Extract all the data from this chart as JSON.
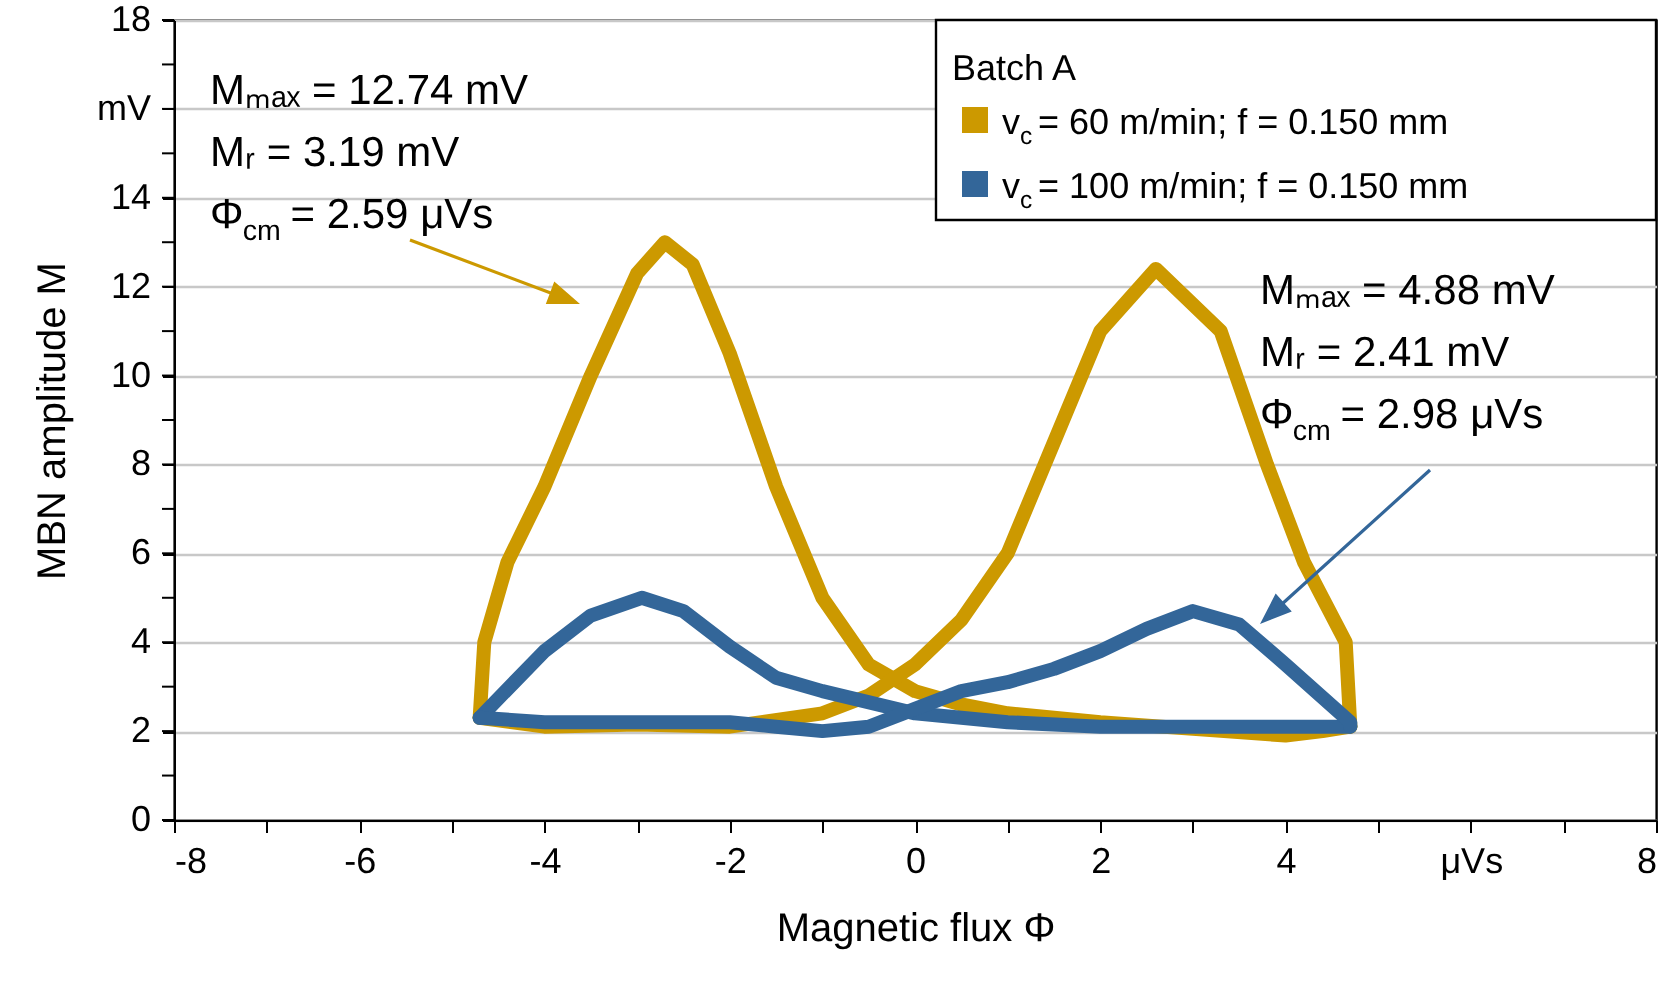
{
  "chart_data": {
    "type": "line",
    "xlabel": "Magnetic flux Φ",
    "ylabel": "MBN amplitude M",
    "legend_title": "Batch A",
    "series": [
      {
        "name": "v$_{c}$ = 60 m/min; f = 0.150 mm",
        "color": "#cc9900",
        "x": [
          -4.7,
          -4.65,
          -4.4,
          -4.0,
          -3.5,
          -3.0,
          -2.7,
          -2.4,
          -2.0,
          -1.5,
          -1.0,
          -0.5,
          0.0,
          0.5,
          1.0,
          2.0,
          3.0,
          4.0,
          4.4,
          4.7
        ],
        "values": [
          2.3,
          4.0,
          5.8,
          7.5,
          10.0,
          12.3,
          13.0,
          12.5,
          10.5,
          7.5,
          5.0,
          3.5,
          2.9,
          2.6,
          2.4,
          2.2,
          2.05,
          1.9,
          2.0,
          2.1
        ]
      },
      {
        "color": "#cc9900",
        "x": [
          4.7,
          4.65,
          4.2,
          3.8,
          3.3,
          2.6,
          2.0,
          1.5,
          1.0,
          0.5,
          0.0,
          -0.5,
          -1.0,
          -2.0,
          -3.0,
          -4.0,
          -4.7
        ],
        "values": [
          2.1,
          4.0,
          5.8,
          8.0,
          11.0,
          12.4,
          11.0,
          8.5,
          6.0,
          4.5,
          3.5,
          2.8,
          2.4,
          2.1,
          2.15,
          2.1,
          2.3
        ]
      },
      {
        "name": "v$_{c}$ = 100 m/min; f = 0.150 mm",
        "color": "#336699",
        "x": [
          -4.7,
          -4.0,
          -3.5,
          -2.95,
          -2.5,
          -2.0,
          -1.5,
          -1.0,
          0.0,
          1.0,
          2.0,
          3.0,
          4.0,
          4.7
        ],
        "values": [
          2.3,
          3.8,
          4.6,
          5.0,
          4.7,
          3.9,
          3.2,
          2.9,
          2.4,
          2.2,
          2.1,
          2.1,
          2.1,
          2.1
        ]
      },
      {
        "color": "#336699",
        "x": [
          4.7,
          4.7,
          4.0,
          3.5,
          3.0,
          2.5,
          2.0,
          1.5,
          1.0,
          0.5,
          0.0,
          -0.5,
          -1.0,
          -1.5,
          -2.0,
          -3.0,
          -4.0,
          -4.7
        ],
        "values": [
          2.1,
          2.2,
          3.5,
          4.4,
          4.7,
          4.3,
          3.8,
          3.4,
          3.1,
          2.9,
          2.5,
          2.1,
          2.0,
          2.1,
          2.2,
          2.2,
          2.2,
          2.3
        ]
      }
    ],
    "xlim": [
      -8,
      8
    ],
    "xticks": [
      -8,
      {
        "value": -7,
        "label": null
      },
      -6,
      {
        "value": -5,
        "label": null
      },
      -4,
      {
        "value": -3,
        "label": null
      },
      -2,
      {
        "value": -1,
        "label": null
      },
      0,
      {
        "value": 1,
        "label": null
      },
      2,
      {
        "value": 3,
        "label": null
      },
      4,
      {
        "value": 5,
        "label": null
      },
      {
        "value": 6,
        "label": "μVs"
      },
      {
        "value": 7,
        "label": null
      },
      8
    ],
    "ylim": [
      0,
      18
    ],
    "yticks": [
      0,
      {
        "value": 1,
        "label": null
      },
      2,
      {
        "value": 3,
        "label": null
      },
      4,
      {
        "value": 5,
        "label": null
      },
      6,
      {
        "value": 7,
        "label": null
      },
      8,
      {
        "value": 9,
        "label": null
      },
      10,
      {
        "value": 11,
        "label": null
      },
      12,
      {
        "value": 13,
        "label": null
      },
      14,
      {
        "value": 15,
        "label": null
      },
      {
        "value": 16,
        "label": "mV"
      },
      {
        "value": 17,
        "label": null
      },
      18
    ],
    "grid": "y",
    "legend": "top right",
    "marker": "none",
    "line_style": "solid",
    "annotations": [
      "Mₘₐₓ = 12.74 mV\nMᵣ = 3.19 mV\nΦ$_{cm}$ = 2.59 μVs",
      "Mₘₐₓ = 4.88 mV\nMᵣ = 2.41 mV\nΦ$_{cm}$ = 2.98 μVs"
    ]
  }
}
